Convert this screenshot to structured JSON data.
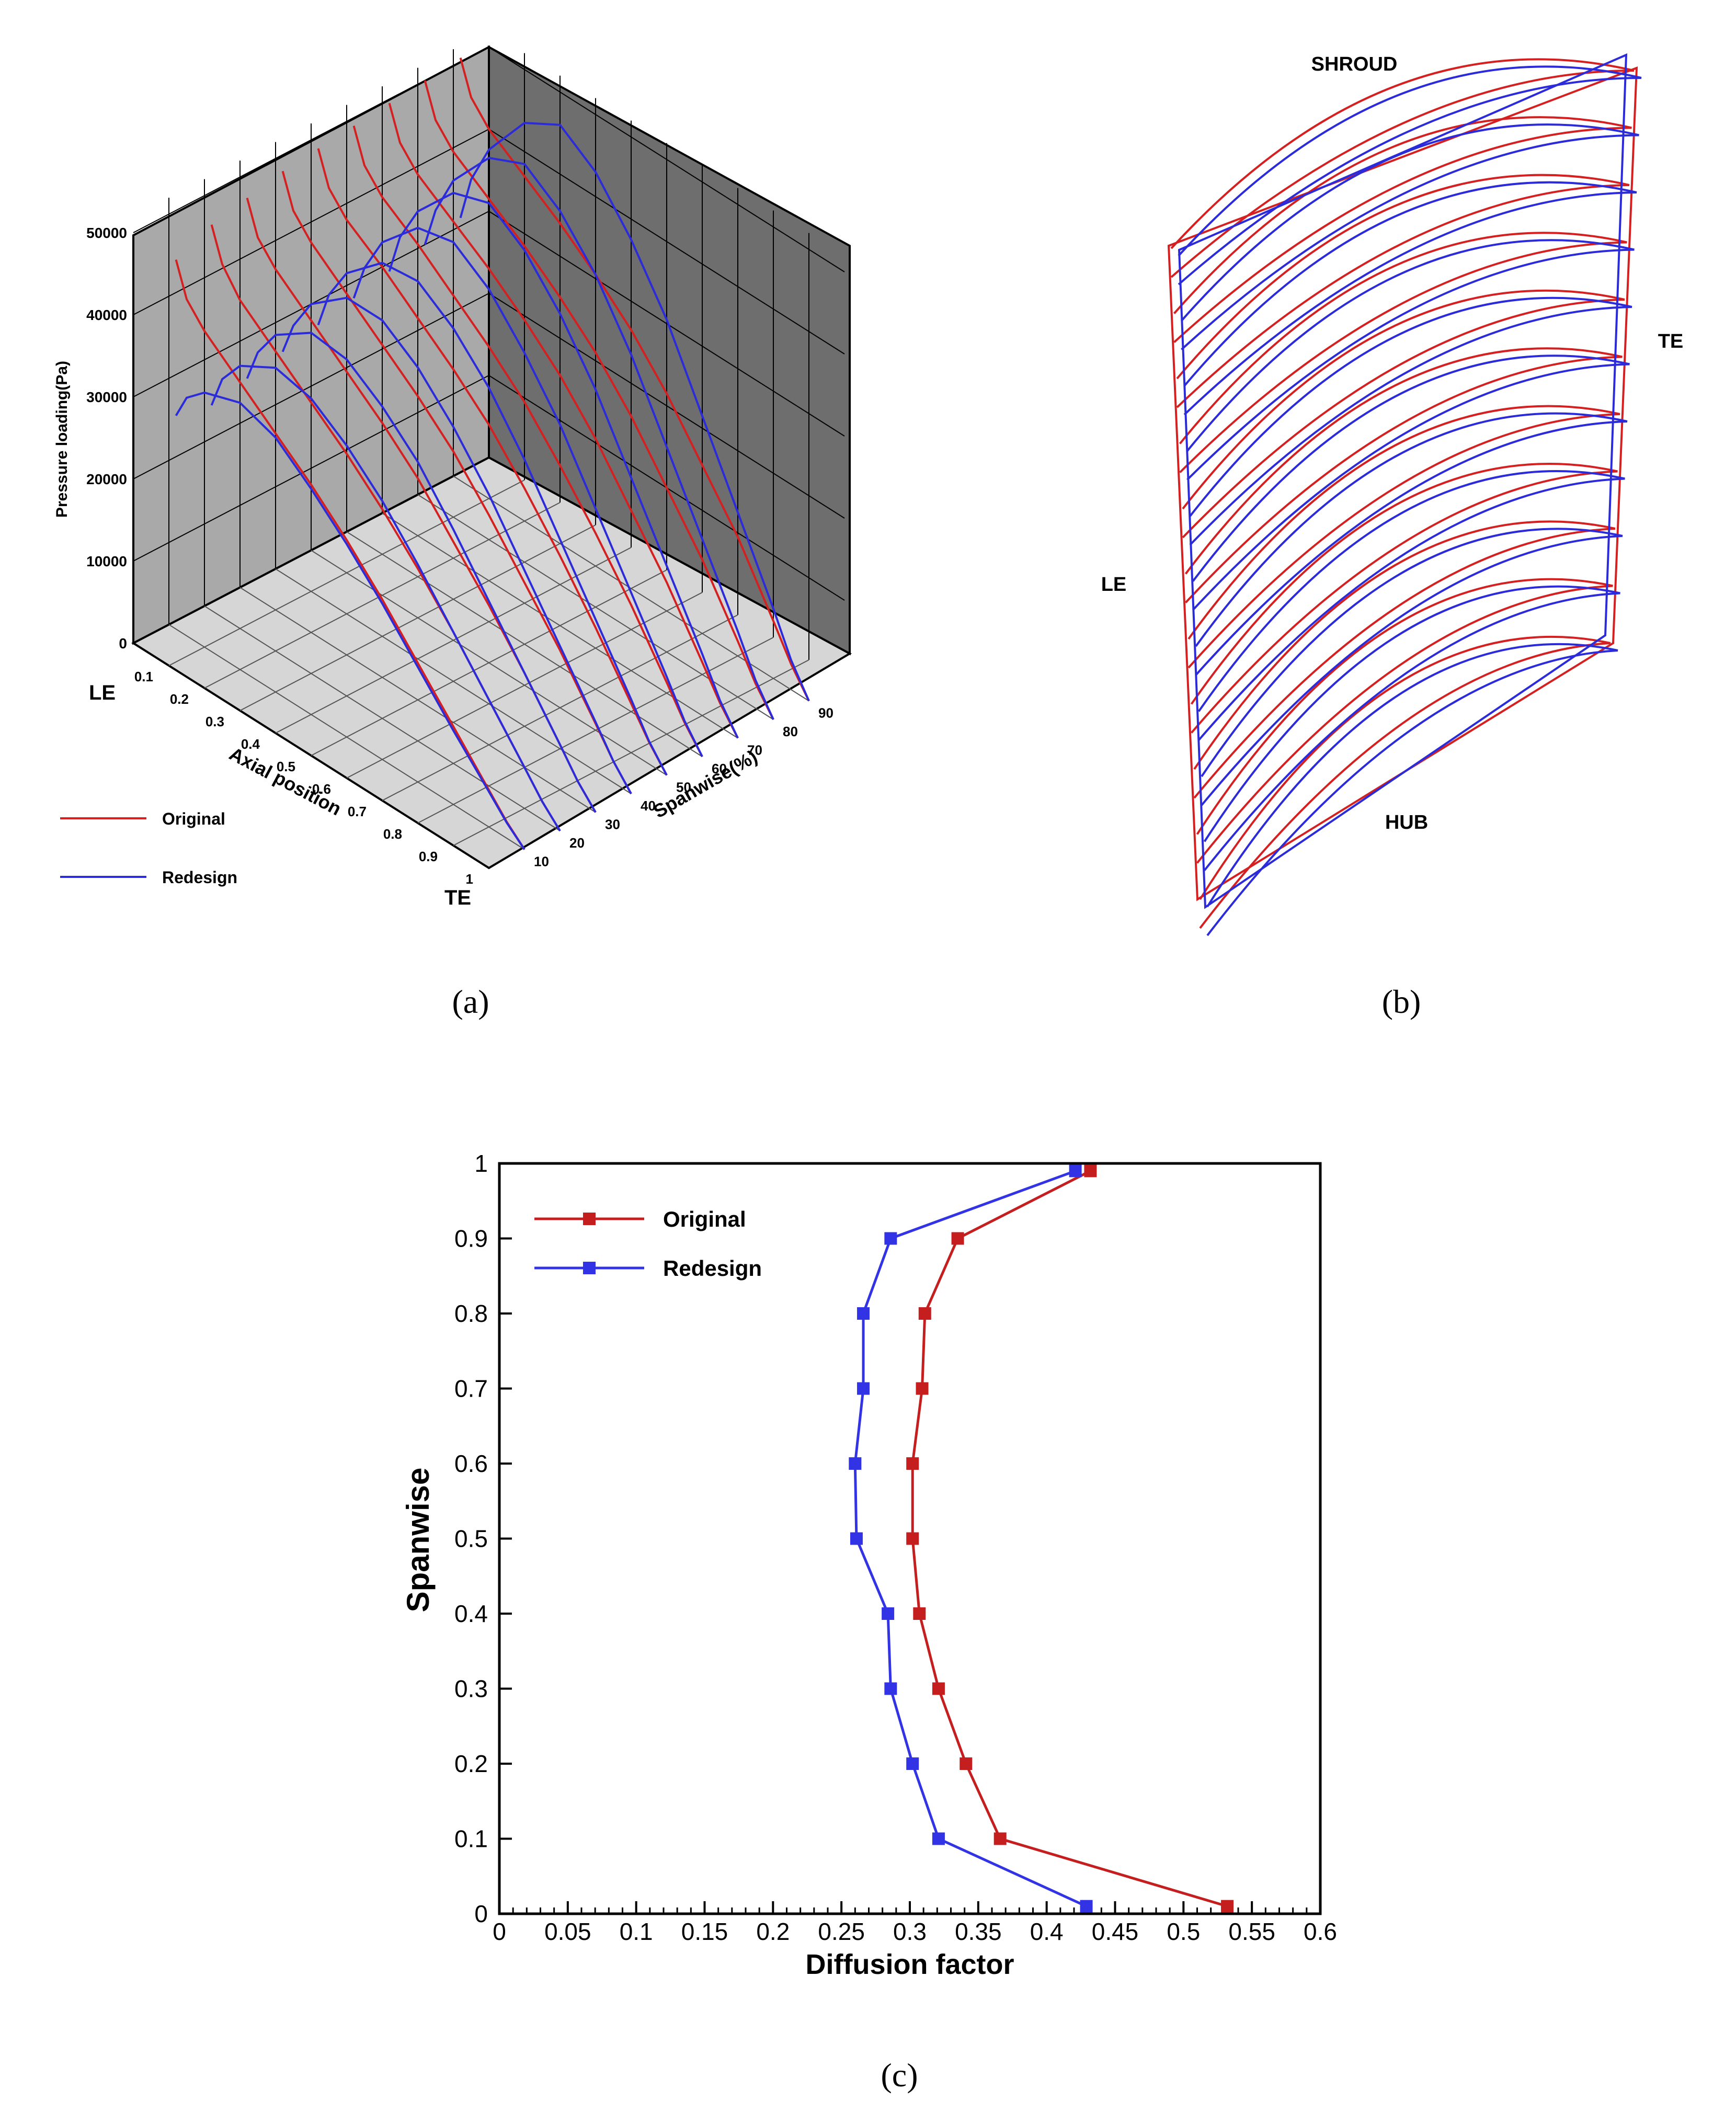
{
  "chart_data": [
    {
      "panel": "a",
      "type": "line",
      "projection": "3d",
      "zlabel": "Pressure loading(Pa)",
      "xlabel": "Axial position",
      "ylabel": "Spanwise(%)",
      "x_end_labels": [
        "LE",
        "TE"
      ],
      "z_ticks": [
        "0",
        "10000",
        "20000",
        "30000",
        "40000",
        "50000"
      ],
      "x_ticks": [
        "0.1",
        "0.2",
        "0.3",
        "0.4",
        "0.5",
        "0.6",
        "0.7",
        "0.8",
        "0.9",
        "1"
      ],
      "y_ticks": [
        "10",
        "20",
        "30",
        "40",
        "50",
        "60",
        "70",
        "80",
        "90"
      ],
      "zlim": [
        0,
        50000
      ],
      "spans": [
        10,
        20,
        30,
        40,
        50,
        60,
        70,
        80,
        90
      ],
      "x": [
        0.02,
        0.05,
        0.1,
        0.2,
        0.3,
        0.4,
        0.5,
        0.6,
        0.7,
        0.8,
        0.9,
        0.95,
        1.0
      ],
      "series": [
        {
          "name": "Original",
          "color": "#d42020",
          "values": [
            [
              45000,
              41000,
              38500,
              35000,
              31500,
              28000,
              24000,
              19500,
              14500,
              9500,
              4500,
              2000,
              0
            ],
            [
              47000,
              43000,
              40000,
              36500,
              33000,
              29500,
              25500,
              21000,
              16000,
              10500,
              5000,
              2200,
              0
            ],
            [
              48000,
              44000,
              41500,
              38000,
              34500,
              31000,
              27000,
              22000,
              17000,
              11500,
              5500,
              2400,
              0
            ],
            [
              49000,
              45000,
              42500,
              39000,
              35500,
              32000,
              28000,
              23000,
              17500,
              12000,
              5800,
              2600,
              0
            ],
            [
              49500,
              45500,
              43000,
              40000,
              36500,
              33000,
              29000,
              24000,
              18500,
              12500,
              6000,
              2700,
              0
            ],
            [
              50000,
              46000,
              43500,
              40500,
              37000,
              33500,
              29500,
              24500,
              19000,
              13000,
              6300,
              2800,
              0
            ],
            [
              50500,
              46500,
              44000,
              41000,
              38000,
              34500,
              30500,
              25500,
              19500,
              13500,
              6500,
              2900,
              0
            ],
            [
              51000,
              47000,
              44500,
              41500,
              38500,
              35000,
              31000,
              26000,
              20000,
              14000,
              6800,
              3000,
              0
            ],
            [
              51500,
              47500,
              45000,
              42000,
              39000,
              35500,
              31500,
              26500,
              20500,
              14500,
              7000,
              3100,
              0
            ]
          ]
        },
        {
          "name": "Redesign",
          "color": "#2b2bd9",
          "values": [
            [
              26000,
              29000,
              31000,
              32500,
              31000,
              27500,
              23500,
              19000,
              14000,
              9000,
              4300,
              1900,
              0
            ],
            [
              25000,
              29000,
              32000,
              34500,
              33500,
              30500,
              26500,
              21500,
              16000,
              10500,
              5000,
              2200,
              0
            ],
            [
              26000,
              30000,
              33500,
              36500,
              36000,
              33000,
              29000,
              23500,
              17500,
              11500,
              5500,
              2400,
              0
            ],
            [
              27000,
              31000,
              35000,
              38500,
              38500,
              35500,
              31000,
              25500,
              19000,
              12500,
              6000,
              2600,
              0
            ],
            [
              28000,
              32500,
              36500,
              40500,
              41000,
              38000,
              33500,
              27500,
              20500,
              13500,
              6500,
              2800,
              0
            ],
            [
              29000,
              33500,
              38000,
              42500,
              43500,
              40500,
              35500,
              29500,
              22000,
              14500,
              7000,
              3000,
              0
            ],
            [
              30000,
              35000,
              39500,
              44500,
              46000,
              43000,
              38000,
              31500,
              23500,
              15500,
              7500,
              3200,
              0
            ],
            [
              31000,
              36000,
              41000,
              46500,
              48500,
              45500,
              40500,
              33500,
              25000,
              16500,
              8000,
              3400,
              0
            ],
            [
              32000,
              37500,
              42500,
              48500,
              51000,
              48000,
              42500,
              35500,
              26500,
              17500,
              8500,
              3600,
              0
            ]
          ]
        }
      ],
      "legend": [
        "Original",
        "Redesign"
      ],
      "legend_position": "bottom-left",
      "caption": "(a)"
    },
    {
      "panel": "b",
      "type": "diagram",
      "labels": {
        "top": "SHROUD",
        "right": "TE",
        "left": "LE",
        "bottom": "HUB"
      },
      "sections": 11,
      "series": [
        {
          "name": "Original",
          "color": "#d42020"
        },
        {
          "name": "Redesign",
          "color": "#2b2bd9"
        }
      ],
      "caption": "(b)"
    },
    {
      "panel": "c",
      "type": "line",
      "xlabel": "Diffusion factor",
      "ylabel": "Spanwise",
      "xlim": [
        0,
        0.6
      ],
      "ylim": [
        0,
        1
      ],
      "x_ticks": [
        "0",
        "0.05",
        "0.1",
        "0.15",
        "0.2",
        "0.25",
        "0.3",
        "0.35",
        "0.4",
        "0.45",
        "0.5",
        "0.55",
        "0.6"
      ],
      "y_ticks": [
        "0",
        "0.1",
        "0.2",
        "0.3",
        "0.4",
        "0.5",
        "0.6",
        "0.7",
        "0.8",
        "0.9",
        "1"
      ],
      "series": [
        {
          "name": "Original",
          "color": "#c41e1e",
          "x": [
            0.532,
            0.366,
            0.341,
            0.321,
            0.307,
            0.302,
            0.302,
            0.309,
            0.311,
            0.335,
            0.432
          ],
          "y": [
            0.01,
            0.1,
            0.2,
            0.3,
            0.4,
            0.5,
            0.6,
            0.7,
            0.8,
            0.9,
            0.99
          ]
        },
        {
          "name": "Redesign",
          "color": "#3333e6",
          "x": [
            0.429,
            0.321,
            0.302,
            0.286,
            0.284,
            0.261,
            0.26,
            0.266,
            0.266,
            0.286,
            0.421
          ],
          "y": [
            0.01,
            0.1,
            0.2,
            0.3,
            0.4,
            0.5,
            0.6,
            0.7,
            0.8,
            0.9,
            0.99
          ]
        }
      ],
      "legend": [
        "Original",
        "Redesign"
      ],
      "legend_position": "top-left",
      "caption": "(c)"
    }
  ]
}
